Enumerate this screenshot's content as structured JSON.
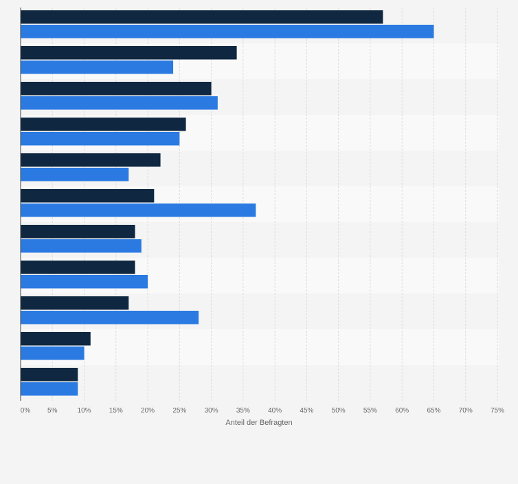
{
  "chart_data": {
    "type": "bar",
    "orientation": "horizontal",
    "title": "",
    "xlabel": "Anteil der Befragten",
    "ylabel": "",
    "xlim": [
      0,
      75
    ],
    "x_ticks": [
      0,
      5,
      10,
      15,
      20,
      25,
      30,
      35,
      40,
      45,
      50,
      55,
      60,
      65,
      70,
      75
    ],
    "x_tick_labels": [
      "0%",
      "5%",
      "10%",
      "15%",
      "20%",
      "25%",
      "30%",
      "35%",
      "40%",
      "45%",
      "50%",
      "55%",
      "60%",
      "65%",
      "70%",
      "75%"
    ],
    "grid": true,
    "category_labels_visible": false,
    "categories": [
      "",
      "",
      "",
      "",
      "",
      "",
      "",
      "",
      "",
      "",
      ""
    ],
    "series": [
      {
        "color": "#0f2740",
        "values": [
          57,
          34,
          30,
          26,
          22,
          21,
          18,
          18,
          17,
          11,
          9
        ]
      },
      {
        "color": "#2a7ae2",
        "values": [
          65,
          24,
          31,
          25,
          17,
          37,
          19,
          20,
          28,
          10,
          9
        ]
      }
    ]
  }
}
